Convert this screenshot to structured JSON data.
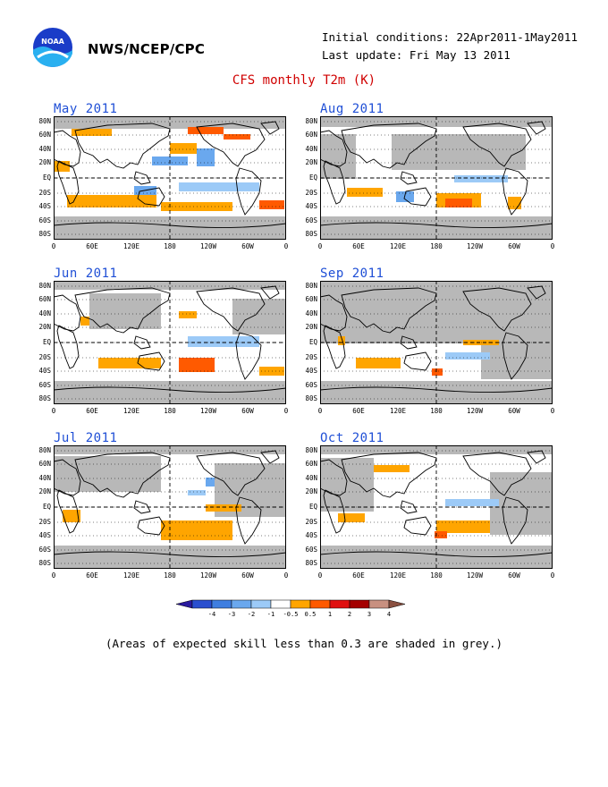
{
  "header": {
    "agency": "NWS/NCEP/CPC",
    "initial_conditions": "Initial conditions: 22Apr2011-1May2011",
    "last_update": "Last update: Fri May 13 2011",
    "title": "CFS monthly T2m (K)"
  },
  "logo": {
    "icon": "noaa-logo-icon",
    "text": "NOAA"
  },
  "panels": [
    {
      "month": "May 2011"
    },
    {
      "month": "Aug 2011"
    },
    {
      "month": "Jun 2011"
    },
    {
      "month": "Sep 2011"
    },
    {
      "month": "Jul 2011"
    },
    {
      "month": "Oct 2011"
    }
  ],
  "lat_ticks": [
    "80N",
    "60N",
    "40N",
    "20N",
    "EQ",
    "20S",
    "40S",
    "60S",
    "80S"
  ],
  "lon_ticks": [
    "0",
    "60E",
    "120E",
    "180",
    "120W",
    "60W",
    "0"
  ],
  "colorbar": {
    "labels": [
      "-4",
      "-3",
      "-2",
      "-1",
      "-0.5",
      "0.5",
      "1",
      "2",
      "3",
      "4"
    ],
    "colors": [
      "#2a1a9e",
      "#2a4fcf",
      "#3f7ee0",
      "#6aa8ee",
      "#9ccaf7",
      "#ffffff",
      "#ffa500",
      "#ff5a00",
      "#e01010",
      "#a40000",
      "#c89080",
      "#8a5040"
    ]
  },
  "footnote": "(Areas of expected skill less than 0.3 are shaded in grey.)"
}
